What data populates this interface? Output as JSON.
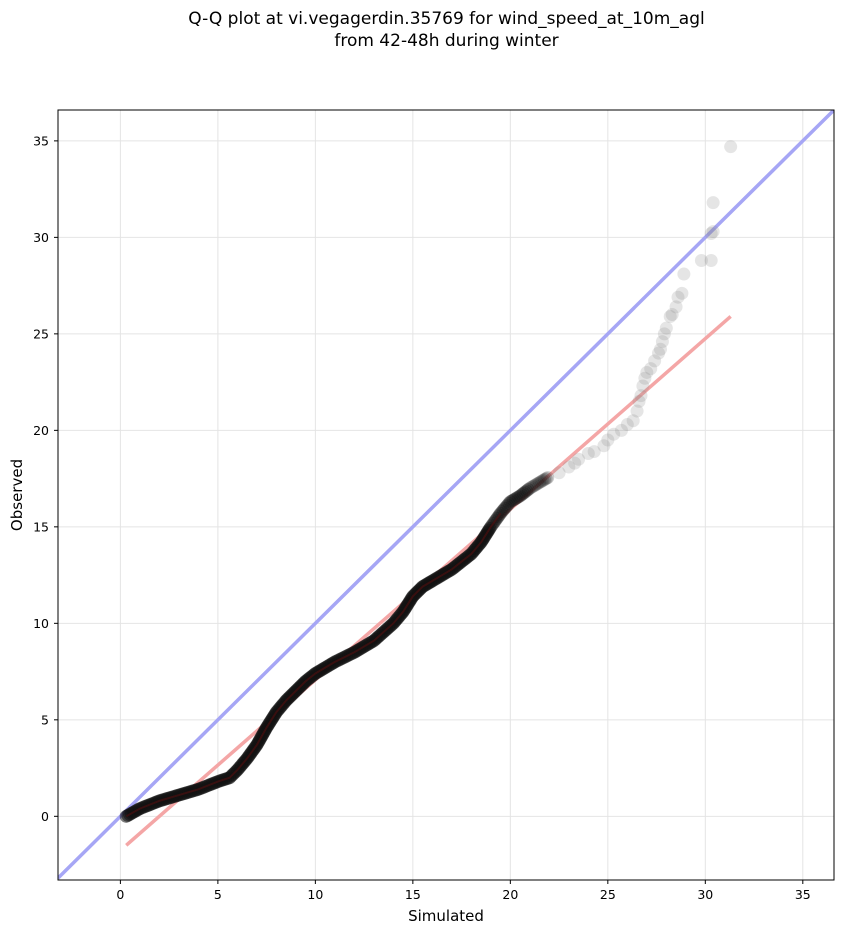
{
  "title_lines": [
    "Q-Q plot at vi.vegagerdin.35769 for wind_speed_at_10m_agl",
    "from 42-48h during winter"
  ],
  "chart_data": {
    "type": "scatter",
    "title": "Q-Q plot at vi.vegagerdin.35769 for wind_speed_at_10m_agl\nfrom 42-48h during winter",
    "xlabel": "Simulated",
    "ylabel": "Observed",
    "xlim": [
      -3.2,
      36.6
    ],
    "ylim": [
      -3.3,
      36.6
    ],
    "xticks": [
      0,
      5,
      10,
      15,
      20,
      25,
      30,
      35
    ],
    "yticks": [
      0,
      5,
      10,
      15,
      20,
      25,
      30,
      35
    ],
    "grid": true,
    "identity_line": {
      "from": [
        -3.2,
        -3.2
      ],
      "to": [
        36.6,
        36.6
      ],
      "color": "#a6a6f5"
    },
    "fit_line": {
      "from": [
        0.3,
        -1.5
      ],
      "to": [
        31.3,
        25.9
      ],
      "color": "#f4a6a6"
    },
    "quantile_curve": [
      [
        0.3,
        0.0
      ],
      [
        1.0,
        0.4
      ],
      [
        2.0,
        0.8
      ],
      [
        3.0,
        1.1
      ],
      [
        4.0,
        1.4
      ],
      [
        5.0,
        1.8
      ],
      [
        5.6,
        2.0
      ],
      [
        6.0,
        2.4
      ],
      [
        6.5,
        3.0
      ],
      [
        7.0,
        3.7
      ],
      [
        7.5,
        4.6
      ],
      [
        8.0,
        5.4
      ],
      [
        8.5,
        6.0
      ],
      [
        9.0,
        6.5
      ],
      [
        9.5,
        7.0
      ],
      [
        10.0,
        7.4
      ],
      [
        11.0,
        8.0
      ],
      [
        12.0,
        8.5
      ],
      [
        13.0,
        9.1
      ],
      [
        14.0,
        10.0
      ],
      [
        14.5,
        10.6
      ],
      [
        15.0,
        11.4
      ],
      [
        15.5,
        11.9
      ],
      [
        16.0,
        12.2
      ],
      [
        17.0,
        12.8
      ],
      [
        17.5,
        13.2
      ],
      [
        18.0,
        13.6
      ],
      [
        18.5,
        14.2
      ],
      [
        19.0,
        15.0
      ],
      [
        19.5,
        15.7
      ],
      [
        20.0,
        16.3
      ],
      [
        20.5,
        16.6
      ],
      [
        21.0,
        17.0
      ],
      [
        21.5,
        17.3
      ],
      [
        22.0,
        17.6
      ]
    ],
    "tail_points": [
      [
        22.5,
        17.8
      ],
      [
        23.0,
        18.1
      ],
      [
        23.3,
        18.3
      ],
      [
        23.5,
        18.5
      ],
      [
        24.0,
        18.8
      ],
      [
        24.3,
        18.9
      ],
      [
        24.8,
        19.2
      ],
      [
        25.0,
        19.5
      ],
      [
        25.3,
        19.8
      ],
      [
        25.7,
        20.0
      ],
      [
        26.0,
        20.3
      ],
      [
        26.3,
        20.5
      ],
      [
        26.5,
        21.0
      ],
      [
        26.6,
        21.5
      ],
      [
        26.7,
        21.8
      ],
      [
        26.8,
        22.3
      ],
      [
        26.9,
        22.7
      ],
      [
        27.0,
        23.0
      ],
      [
        27.2,
        23.2
      ],
      [
        27.4,
        23.6
      ],
      [
        27.6,
        24.0
      ],
      [
        27.7,
        24.2
      ],
      [
        27.8,
        24.6
      ],
      [
        27.9,
        25.0
      ],
      [
        28.0,
        25.3
      ],
      [
        28.2,
        25.9
      ],
      [
        28.3,
        26.0
      ],
      [
        28.5,
        26.4
      ],
      [
        28.6,
        26.9
      ],
      [
        28.8,
        27.1
      ],
      [
        28.9,
        28.1
      ],
      [
        29.8,
        28.8
      ],
      [
        30.3,
        28.8
      ],
      [
        30.3,
        30.2
      ],
      [
        30.4,
        30.3
      ],
      [
        30.4,
        31.8
      ],
      [
        31.3,
        34.7
      ]
    ]
  }
}
